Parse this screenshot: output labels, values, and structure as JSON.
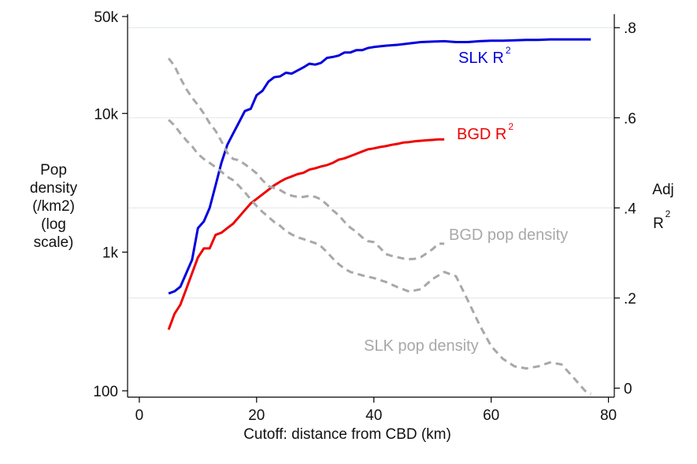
{
  "chart_data": {
    "type": "line",
    "xlabel": "Cutoff: distance from CBD (km)",
    "ylabel_left": [
      "Pop",
      "density",
      "(/km2)",
      "(log",
      "scale)"
    ],
    "ylabel_right": [
      "Adj",
      "R",
      "2"
    ],
    "x_ticks": [
      0,
      20,
      40,
      60,
      80
    ],
    "x_tick_labels": [
      "0",
      "20",
      "40",
      "60",
      "80"
    ],
    "xlim": [
      -2,
      81
    ],
    "left_axis": {
      "scale": "log",
      "ylim": [
        90,
        52000
      ],
      "ticks": [
        100,
        1000,
        10000,
        50000
      ],
      "tick_labels": [
        "100",
        "1k",
        "10k",
        "50k"
      ]
    },
    "right_axis": {
      "scale": "linear",
      "ylim": [
        -0.02,
        0.83
      ],
      "ticks": [
        0,
        0.2,
        0.4,
        0.6,
        0.8
      ],
      "tick_labels": [
        "0",
        ".2",
        ".4",
        ".6",
        ".8"
      ]
    },
    "gridlines": "horizontal, at right-axis ticks",
    "series": [
      {
        "name": "SLK R",
        "superscript": "2",
        "axis": "right",
        "color": "#0000dd",
        "style": "solid",
        "x": [
          5,
          6,
          7,
          8,
          9,
          10,
          11,
          12,
          13,
          14,
          15,
          16,
          17,
          18,
          19,
          20,
          21,
          22,
          23,
          24,
          25,
          26,
          27,
          28,
          29,
          30,
          31,
          32,
          33,
          34,
          35,
          36,
          37,
          38,
          39,
          40,
          42,
          44,
          46,
          48,
          50,
          52,
          54,
          56,
          58,
          60,
          62,
          64,
          66,
          68,
          70,
          72,
          74,
          76,
          77
        ],
        "y": [
          0.21,
          0.215,
          0.225,
          0.255,
          0.285,
          0.355,
          0.37,
          0.4,
          0.45,
          0.5,
          0.54,
          0.565,
          0.59,
          0.615,
          0.62,
          0.65,
          0.66,
          0.68,
          0.69,
          0.692,
          0.7,
          0.698,
          0.705,
          0.712,
          0.72,
          0.718,
          0.722,
          0.733,
          0.735,
          0.738,
          0.745,
          0.745,
          0.75,
          0.75,
          0.755,
          0.757,
          0.76,
          0.762,
          0.765,
          0.768,
          0.769,
          0.77,
          0.768,
          0.768,
          0.77,
          0.771,
          0.771,
          0.772,
          0.773,
          0.773,
          0.774,
          0.774,
          0.774,
          0.774,
          0.774
        ]
      },
      {
        "name": "BGD R",
        "superscript": "2",
        "axis": "right",
        "color": "#ee0000",
        "style": "solid",
        "x": [
          5,
          6,
          7,
          8,
          9,
          10,
          11,
          12,
          13,
          14,
          15,
          16,
          17,
          18,
          19,
          20,
          21,
          22,
          23,
          24,
          25,
          26,
          27,
          28,
          29,
          30,
          31,
          32,
          33,
          34,
          35,
          36,
          37,
          38,
          39,
          40,
          41,
          42,
          43,
          44,
          45,
          46,
          47,
          48,
          49,
          50,
          51,
          52
        ],
        "y": [
          0.13,
          0.165,
          0.185,
          0.22,
          0.255,
          0.29,
          0.31,
          0.31,
          0.34,
          0.345,
          0.355,
          0.365,
          0.38,
          0.395,
          0.41,
          0.42,
          0.43,
          0.44,
          0.45,
          0.458,
          0.465,
          0.47,
          0.475,
          0.478,
          0.485,
          0.488,
          0.492,
          0.495,
          0.5,
          0.507,
          0.51,
          0.515,
          0.52,
          0.525,
          0.53,
          0.532,
          0.535,
          0.537,
          0.54,
          0.542,
          0.545,
          0.546,
          0.548,
          0.549,
          0.55,
          0.551,
          0.552,
          0.552
        ]
      },
      {
        "name": "BGD pop density",
        "axis": "left",
        "color": "#a8a8a8",
        "style": "dashed",
        "x": [
          5,
          6,
          7,
          8,
          9,
          10,
          11,
          12,
          13,
          14,
          15,
          16,
          17,
          18,
          19,
          20,
          21,
          22,
          23,
          24,
          25,
          26,
          27,
          28,
          29,
          30,
          31,
          32,
          33,
          34,
          35,
          36,
          37,
          38,
          39,
          40,
          41,
          42,
          43,
          44,
          45,
          46,
          47,
          48,
          49,
          50,
          51,
          52
        ],
        "y": [
          25000,
          22000,
          18000,
          15000,
          13000,
          11500,
          10000,
          8500,
          7500,
          6300,
          5200,
          4700,
          4600,
          4300,
          4000,
          3700,
          3300,
          3000,
          2900,
          2800,
          2650,
          2550,
          2500,
          2500,
          2550,
          2500,
          2400,
          2200,
          2000,
          1850,
          1650,
          1500,
          1400,
          1280,
          1200,
          1180,
          1080,
          970,
          940,
          920,
          900,
          890,
          895,
          920,
          980,
          1050,
          1150,
          1150
        ]
      },
      {
        "name": "SLK pop density",
        "axis": "left",
        "color": "#a8a8a8",
        "style": "dashed",
        "x": [
          5,
          6,
          7,
          8,
          9,
          10,
          11,
          12,
          13,
          14,
          15,
          16,
          17,
          18,
          19,
          20,
          21,
          22,
          23,
          24,
          25,
          26,
          27,
          28,
          29,
          30,
          31,
          32,
          33,
          34,
          35,
          36,
          37,
          38,
          39,
          40,
          42,
          44,
          46,
          48,
          50,
          52,
          54,
          56,
          58,
          60,
          62,
          64,
          66,
          68,
          70,
          72,
          74,
          76,
          77
        ],
        "y": [
          9000,
          8200,
          7200,
          6400,
          5800,
          5100,
          4700,
          4400,
          4100,
          3800,
          3500,
          3300,
          3000,
          2700,
          2400,
          2150,
          1950,
          1800,
          1650,
          1550,
          1420,
          1340,
          1280,
          1240,
          1200,
          1160,
          1100,
          1000,
          900,
          820,
          760,
          720,
          700,
          680,
          665,
          650,
          610,
          560,
          520,
          540,
          640,
          720,
          670,
          450,
          300,
          210,
          170,
          150,
          145,
          150,
          160,
          155,
          125,
          100,
          95
        ]
      }
    ]
  }
}
